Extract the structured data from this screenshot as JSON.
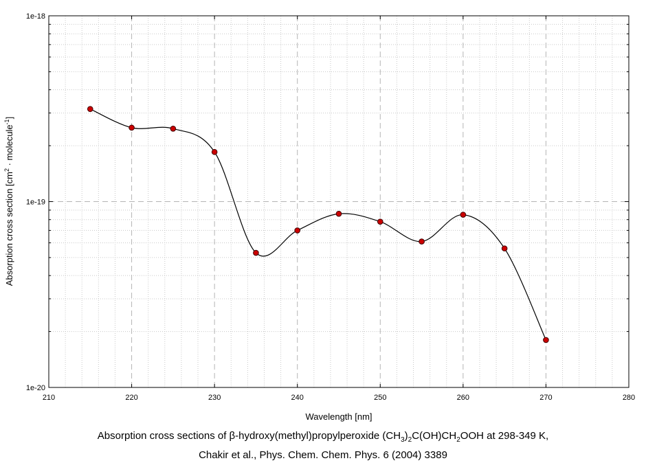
{
  "chart_data": {
    "type": "scatter",
    "title": "",
    "xlabel": "Wavelength [nm]",
    "ylabel_main": "Absorption cross section [cm",
    "ylabel_sup1": "2",
    "ylabel_mid": " · molecule",
    "ylabel_sup2": "-1",
    "ylabel_end": "]",
    "xlim": [
      210,
      280
    ],
    "ylim": [
      1e-20,
      1e-18
    ],
    "yscale": "log",
    "grid": true,
    "x_ticks": [
      "210",
      "220",
      "230",
      "240",
      "250",
      "260",
      "270",
      "280"
    ],
    "y_ticks": [
      "1e-20",
      "1e-19",
      "1e-18"
    ],
    "marker_color": "#cc0000",
    "line_color": "#000000",
    "series": [
      {
        "x": [
          215,
          220,
          225,
          230,
          235,
          240,
          245,
          250,
          255,
          260,
          265,
          270
        ],
        "y": [
          3.15e-19,
          2.5e-19,
          2.47e-19,
          1.85e-19,
          5.3e-20,
          7e-20,
          8.6e-20,
          7.8e-20,
          6.1e-20,
          8.5e-20,
          5.6e-20,
          1.8e-20
        ]
      }
    ]
  },
  "caption": {
    "line1_a": "Absorption cross sections of β-hydroxy(methyl)propylperoxide (CH",
    "sub1": "3",
    "line1_b": ")",
    "sub2": "2",
    "line1_c": "C(OH)CH",
    "sub3": "2",
    "line1_d": "OOH at 298-349 K,",
    "line2": "Chakir et al., Phys. Chem. Chem. Phys. 6 (2004) 3389"
  }
}
